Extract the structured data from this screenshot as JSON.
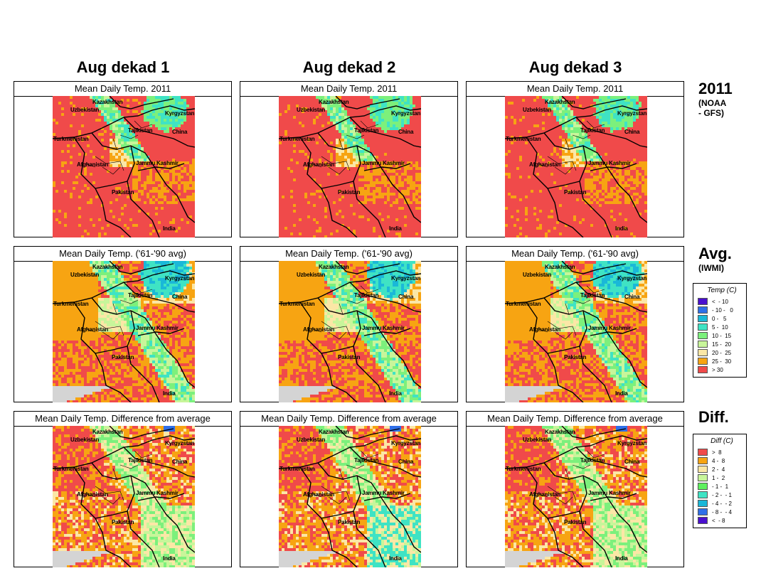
{
  "columns": [
    "Aug dekad 1",
    "Aug dekad 2",
    "Aug dekad 3"
  ],
  "rows": [
    {
      "title": "Mean Daily Temp. 2011",
      "label": "2011",
      "sub": [
        "(NOAA",
        "- GFS)"
      ],
      "type": "temp2011"
    },
    {
      "title": "Mean Daily Temp. ('61-'90 avg)",
      "label": "Avg.",
      "sub": [
        "(IWMI)"
      ],
      "type": "tempavg"
    },
    {
      "title": "Mean Daily Temp. Difference from average",
      "label": "Diff.",
      "sub": [],
      "type": "diff"
    }
  ],
  "map_labels": [
    "Kazakhstan",
    "Uzbekistan",
    "Kyrgyzstan",
    "Tajikistan",
    "China",
    "Turkmenistan",
    "Afghanistan",
    "Jammu Kashmir",
    "Pakistan",
    "India"
  ],
  "temp_legend": {
    "title": "Temp (C)",
    "items": [
      {
        "label": "<  - 10",
        "color": "#4a0fcf"
      },
      {
        "label": "- 10 -   0",
        "color": "#2f6fe8"
      },
      {
        "label": "0 -   5",
        "color": "#1ab8d8"
      },
      {
        "label": "5 -  10",
        "color": "#3fe3c4"
      },
      {
        "label": "10 -  15",
        "color": "#7cf07c"
      },
      {
        "label": "15 -  20",
        "color": "#c8f59a"
      },
      {
        "label": "20 -  25",
        "color": "#fbe7a6"
      },
      {
        "label": "25 -  30",
        "color": "#f7a412"
      },
      {
        "label": "> 30",
        "color": "#f04a4a"
      }
    ]
  },
  "diff_legend": {
    "title": "Diff (C)",
    "items": [
      {
        "label": ">  8",
        "color": "#f04a4a"
      },
      {
        "label": "4 -  8",
        "color": "#f7a412"
      },
      {
        "label": "2 -  4",
        "color": "#fbe7a6"
      },
      {
        "label": "1 -  2",
        "color": "#c8f59a"
      },
      {
        "label": "- 1 -  1",
        "color": "#5ef05e"
      },
      {
        "label": "- 2 -  - 1",
        "color": "#3fe3c4"
      },
      {
        "label": "- 4 -  - 2",
        "color": "#1ab8d8"
      },
      {
        "label": "- 8 -  - 4",
        "color": "#2f6fe8"
      },
      {
        "label": "<  - 8",
        "color": "#4a0fcf"
      }
    ]
  }
}
